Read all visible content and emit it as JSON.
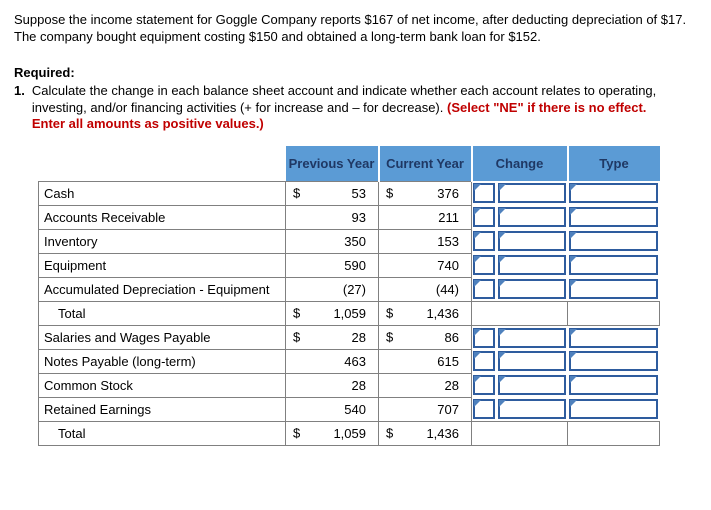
{
  "colors": {
    "header_bg": "#5b9bd5",
    "header_text": "#1f3864",
    "input_border": "#2e5c9e",
    "flag": "#4f81bd",
    "grid": "#808080",
    "red_text": "#c00000"
  },
  "problem": {
    "intro": "Suppose the income statement for Goggle Company reports $167 of net income, after deducting depreciation of $17. The company bought equipment costing $150 and obtained a long-term bank loan for $152.",
    "required_label": "Required:",
    "item_number": "1.",
    "item_text": "Calculate the change in each balance sheet account and indicate whether each account relates to operating, investing, and/or financing activities (+ for increase and – for decrease). ",
    "item_text_red": "(Select \"NE\" if there is no effect. Enter all amounts as positive values.)"
  },
  "table": {
    "headers": [
      "Previous Year",
      "Current Year",
      "Change",
      "Type"
    ],
    "rows": [
      {
        "label": "Cash",
        "prev_dollar": "$",
        "prev": "53",
        "curr_dollar": "$",
        "curr": "376",
        "editable": true,
        "is_total": false
      },
      {
        "label": "Accounts Receivable",
        "prev_dollar": "",
        "prev": "93",
        "curr_dollar": "",
        "curr": "211",
        "editable": true,
        "is_total": false
      },
      {
        "label": "Inventory",
        "prev_dollar": "",
        "prev": "350",
        "curr_dollar": "",
        "curr": "153",
        "editable": true,
        "is_total": false
      },
      {
        "label": "Equipment",
        "prev_dollar": "",
        "prev": "590",
        "curr_dollar": "",
        "curr": "740",
        "editable": true,
        "is_total": false
      },
      {
        "label": "Accumulated Depreciation - Equipment",
        "prev_dollar": "",
        "prev": "(27)",
        "curr_dollar": "",
        "curr": "(44)",
        "editable": true,
        "is_total": false
      },
      {
        "label": "Total",
        "prev_dollar": "$",
        "prev": "1,059",
        "curr_dollar": "$",
        "curr": "1,436",
        "editable": false,
        "is_total": true
      },
      {
        "label": "Salaries and Wages Payable",
        "prev_dollar": "$",
        "prev": "28",
        "curr_dollar": "$",
        "curr": "86",
        "editable": true,
        "is_total": false
      },
      {
        "label": "Notes Payable (long-term)",
        "prev_dollar": "",
        "prev": "463",
        "curr_dollar": "",
        "curr": "615",
        "editable": true,
        "is_total": false
      },
      {
        "label": "Common Stock",
        "prev_dollar": "",
        "prev": "28",
        "curr_dollar": "",
        "curr": "28",
        "editable": true,
        "is_total": false
      },
      {
        "label": "Retained Earnings",
        "prev_dollar": "",
        "prev": "540",
        "curr_dollar": "",
        "curr": "707",
        "editable": true,
        "is_total": false
      },
      {
        "label": "Total",
        "prev_dollar": "$",
        "prev": "1,059",
        "curr_dollar": "$",
        "curr": "1,436",
        "editable": false,
        "is_total": true
      }
    ]
  }
}
